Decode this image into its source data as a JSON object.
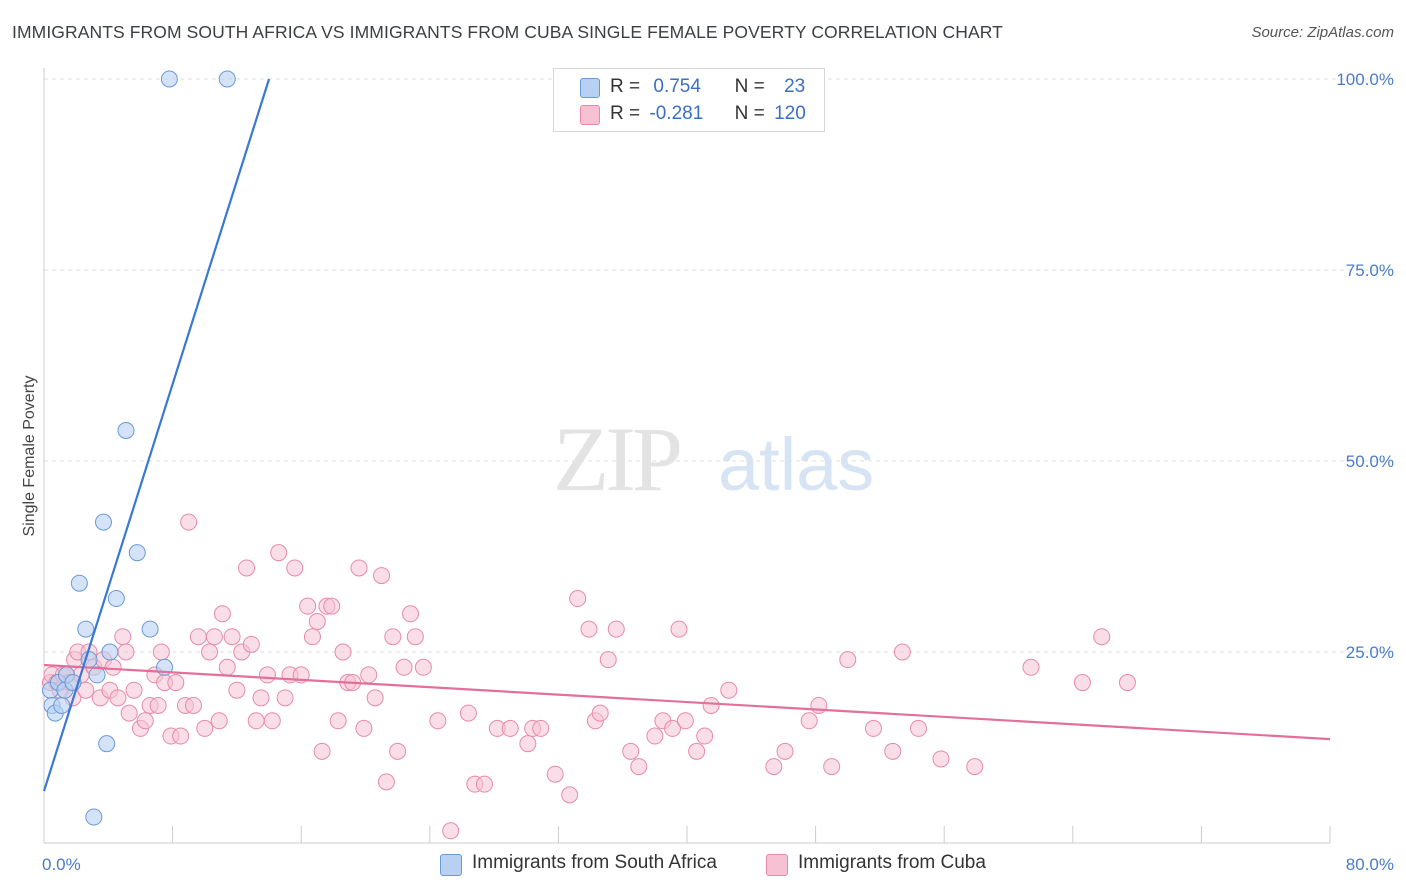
{
  "title": "IMMIGRANTS FROM SOUTH AFRICA VS IMMIGRANTS FROM CUBA SINGLE FEMALE POVERTY CORRELATION CHART",
  "source": "Source: ZipAtlas.com",
  "watermark": {
    "zip": "ZIP",
    "atlas": "atlas"
  },
  "legend": {
    "south_africa": {
      "r_label": "R =",
      "r_value": "0.754",
      "n_label": "N =",
      "n_value": "23"
    },
    "cuba": {
      "r_label": "R =",
      "r_value": "-0.281",
      "n_label": "N =",
      "n_value": "120"
    }
  },
  "colors": {
    "south_africa_fill": "#b8d0f2",
    "south_africa_stroke": "#6a9ad8",
    "south_africa_line": "#3a78d6",
    "cuba_fill": "#f6c2d3",
    "cuba_stroke": "#e78aa8",
    "cuba_line": "#e2709a",
    "grid": "#dddddd",
    "tick_label": "#4a7cc9"
  },
  "chart_data": {
    "type": "scatter",
    "title": "IMMIGRANTS FROM SOUTH AFRICA VS IMMIGRANTS FROM CUBA SINGLE FEMALE POVERTY CORRELATION CHART",
    "xlabel": "",
    "ylabel": "Single Female Poverty",
    "xlim": [
      0,
      80
    ],
    "ylim": [
      0,
      100
    ],
    "x_tick_labels": [
      "0.0%",
      "80.0%"
    ],
    "y_ticks": [
      25,
      50,
      75,
      100
    ],
    "y_tick_labels": [
      "25.0%",
      "50.0%",
      "75.0%",
      "100.0%"
    ],
    "series": [
      {
        "name": "Immigrants from South Africa",
        "r": 0.754,
        "n": 23,
        "trend": {
          "x0": 0,
          "y0": 6.8,
          "x1": 14,
          "y1": 100
        },
        "points": [
          [
            0.4,
            20
          ],
          [
            0.5,
            18
          ],
          [
            0.7,
            17
          ],
          [
            0.9,
            21
          ],
          [
            1.1,
            18
          ],
          [
            1.3,
            20
          ],
          [
            1.4,
            22
          ],
          [
            1.8,
            21
          ],
          [
            2.2,
            34
          ],
          [
            2.6,
            28
          ],
          [
            2.8,
            24
          ],
          [
            3.3,
            22
          ],
          [
            3.7,
            42
          ],
          [
            3.9,
            13
          ],
          [
            4.1,
            25
          ],
          [
            4.5,
            32
          ],
          [
            5.1,
            54
          ],
          [
            5.8,
            38
          ],
          [
            6.6,
            28
          ],
          [
            7.5,
            23
          ],
          [
            7.8,
            100
          ],
          [
            11.4,
            100
          ],
          [
            3.1,
            3.4
          ]
        ]
      },
      {
        "name": "Immigrants from Cuba",
        "r": -0.281,
        "n": 120,
        "trend": {
          "x0": 0,
          "y0": 23.3,
          "x1": 80,
          "y1": 13.6
        },
        "points": [
          [
            0.4,
            21
          ],
          [
            0.5,
            22
          ],
          [
            0.8,
            21
          ],
          [
            1.0,
            20
          ],
          [
            1.2,
            22
          ],
          [
            1.4,
            22
          ],
          [
            1.6,
            21
          ],
          [
            1.8,
            19
          ],
          [
            1.9,
            24
          ],
          [
            2.1,
            25
          ],
          [
            2.3,
            22
          ],
          [
            2.6,
            20
          ],
          [
            2.8,
            25
          ],
          [
            3.1,
            23
          ],
          [
            3.5,
            19
          ],
          [
            3.7,
            24
          ],
          [
            4.1,
            20
          ],
          [
            4.3,
            23
          ],
          [
            4.6,
            19
          ],
          [
            4.9,
            27
          ],
          [
            5.1,
            25
          ],
          [
            5.3,
            17
          ],
          [
            5.6,
            20
          ],
          [
            6.0,
            15
          ],
          [
            6.3,
            16
          ],
          [
            6.6,
            18
          ],
          [
            6.9,
            22
          ],
          [
            7.1,
            18
          ],
          [
            7.3,
            25
          ],
          [
            7.5,
            21
          ],
          [
            7.9,
            14
          ],
          [
            8.2,
            21
          ],
          [
            8.5,
            14
          ],
          [
            8.8,
            18
          ],
          [
            9.0,
            42
          ],
          [
            9.3,
            18
          ],
          [
            9.6,
            27
          ],
          [
            10.0,
            15
          ],
          [
            10.3,
            25
          ],
          [
            10.6,
            27
          ],
          [
            10.9,
            16
          ],
          [
            11.1,
            30
          ],
          [
            11.4,
            23
          ],
          [
            11.7,
            27
          ],
          [
            12.0,
            20
          ],
          [
            12.3,
            25
          ],
          [
            12.6,
            36
          ],
          [
            12.9,
            26
          ],
          [
            13.2,
            16
          ],
          [
            13.5,
            19
          ],
          [
            13.9,
            22
          ],
          [
            14.2,
            16
          ],
          [
            14.6,
            38
          ],
          [
            15.0,
            19
          ],
          [
            15.3,
            22
          ],
          [
            15.6,
            36
          ],
          [
            16.0,
            22
          ],
          [
            16.4,
            31
          ],
          [
            16.7,
            27
          ],
          [
            17.0,
            29
          ],
          [
            17.3,
            12
          ],
          [
            17.6,
            31
          ],
          [
            17.9,
            31
          ],
          [
            18.3,
            16
          ],
          [
            18.6,
            25
          ],
          [
            18.9,
            21
          ],
          [
            19.2,
            21
          ],
          [
            19.6,
            36
          ],
          [
            19.9,
            15
          ],
          [
            20.2,
            22
          ],
          [
            20.6,
            19
          ],
          [
            21.0,
            35
          ],
          [
            21.3,
            8
          ],
          [
            21.7,
            27
          ],
          [
            22.0,
            12
          ],
          [
            22.4,
            23
          ],
          [
            22.8,
            30
          ],
          [
            23.1,
            27
          ],
          [
            23.6,
            23
          ],
          [
            24.5,
            16
          ],
          [
            25.3,
            1.6
          ],
          [
            26.4,
            17
          ],
          [
            26.8,
            7.7
          ],
          [
            27.4,
            7.7
          ],
          [
            28.2,
            15
          ],
          [
            29.0,
            15
          ],
          [
            30.1,
            13
          ],
          [
            30.4,
            15
          ],
          [
            30.9,
            15
          ],
          [
            31.8,
            9
          ],
          [
            32.7,
            6.3
          ],
          [
            33.2,
            32
          ],
          [
            33.9,
            28
          ],
          [
            34.3,
            16
          ],
          [
            34.6,
            17
          ],
          [
            35.1,
            24
          ],
          [
            35.6,
            28
          ],
          [
            36.5,
            12
          ],
          [
            37.0,
            10
          ],
          [
            38.0,
            14
          ],
          [
            38.5,
            16
          ],
          [
            39.1,
            15
          ],
          [
            39.5,
            28
          ],
          [
            39.9,
            16
          ],
          [
            40.6,
            12
          ],
          [
            41.1,
            14
          ],
          [
            41.5,
            18
          ],
          [
            42.6,
            20
          ],
          [
            45.4,
            10
          ],
          [
            46.1,
            12
          ],
          [
            47.6,
            16
          ],
          [
            48.2,
            18
          ],
          [
            49.0,
            10
          ],
          [
            50.0,
            24
          ],
          [
            51.6,
            15
          ],
          [
            52.8,
            12
          ],
          [
            53.4,
            25
          ],
          [
            54.4,
            15
          ],
          [
            55.8,
            11
          ],
          [
            57.9,
            10
          ],
          [
            61.4,
            23
          ],
          [
            64.6,
            21
          ],
          [
            65.8,
            27
          ],
          [
            67.4,
            21
          ]
        ]
      }
    ]
  }
}
